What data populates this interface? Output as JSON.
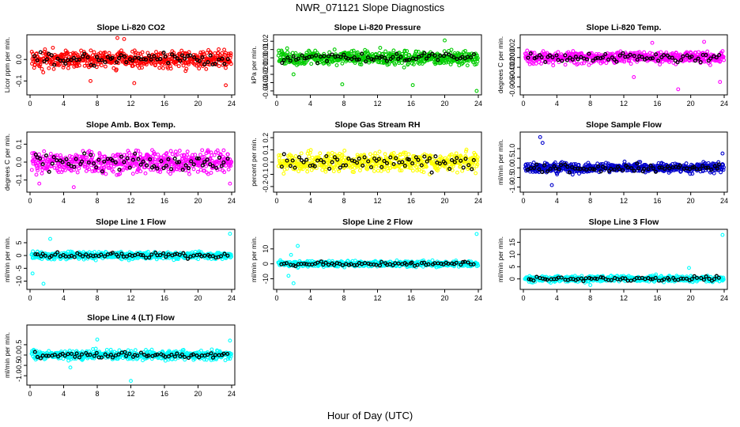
{
  "figure": {
    "title": "NWR_071121  Slope Diagnostics",
    "xlabel": "Hour of Day (UTC)"
  },
  "chart_data": [
    {
      "type": "scatter",
      "title": "Slope Li-820 CO2",
      "ylabel": "Licor ppm per min.",
      "xlim": [
        0,
        24
      ],
      "xticks": [
        "0",
        "4",
        "8",
        "12",
        "16",
        "20",
        "24"
      ],
      "ylim": [
        -0.15,
        0.1
      ],
      "yticks": [
        {
          "v": -0.1,
          "label": "-0.1"
        },
        {
          "v": 0,
          "label": "0.0"
        }
      ],
      "color": "#ff0000",
      "spread": 0.04,
      "outliers": [
        {
          "x": 10.4,
          "y": 0.11
        },
        {
          "x": 11.2,
          "y": 0.095
        },
        {
          "x": 12.4,
          "y": -0.11
        },
        {
          "x": 7.2,
          "y": -0.1
        },
        {
          "x": 23.3,
          "y": -0.12
        }
      ]
    },
    {
      "type": "scatter",
      "title": "Slope Li-820 Pressure",
      "ylabel": "kPa per min.",
      "xlim": [
        0,
        24
      ],
      "xticks": [
        "0",
        "4",
        "8",
        "12",
        "16",
        "20",
        "24"
      ],
      "ylim": [
        -0.041,
        0.024
      ],
      "yticks": [
        {
          "v": -0.04,
          "label": "-0.04"
        },
        {
          "v": -0.03,
          "label": "-0.03"
        },
        {
          "v": -0.02,
          "label": "-0.02"
        },
        {
          "v": -0.01,
          "label": "-0.01"
        },
        {
          "v": 0,
          "label": "0.00"
        },
        {
          "v": 0.01,
          "label": "0.01"
        },
        {
          "v": 0.02,
          "label": "0.02"
        }
      ],
      "color": "#00cc00",
      "spread": 0.008,
      "outliers": [
        {
          "x": 7.8,
          "y": -0.032
        },
        {
          "x": 16.2,
          "y": -0.033
        },
        {
          "x": 23.8,
          "y": -0.04
        },
        {
          "x": 20.0,
          "y": 0.021
        },
        {
          "x": 2.0,
          "y": -0.02
        }
      ]
    },
    {
      "type": "scatter",
      "title": "Slope Li-820 Temp.",
      "ylabel": "degrees C per min.",
      "xlim": [
        0,
        24
      ],
      "xticks": [
        "0",
        "4",
        "8",
        "12",
        "16",
        "20",
        "24"
      ],
      "ylim": [
        -0.007,
        0.004
      ],
      "yticks": [
        {
          "v": -0.006,
          "label": "-0.006"
        },
        {
          "v": -0.004,
          "label": "-0.004"
        },
        {
          "v": -0.002,
          "label": "-0.002"
        },
        {
          "v": 0,
          "label": "0.000"
        },
        {
          "v": 0.002,
          "label": "0.002"
        }
      ],
      "color": "#ff00ff",
      "spread": 0.0012,
      "outliers": [
        {
          "x": 15.4,
          "y": 0.003
        },
        {
          "x": 18.5,
          "y": -0.0065
        },
        {
          "x": 21.6,
          "y": 0.0032
        },
        {
          "x": 23.5,
          "y": -0.005
        },
        {
          "x": 13.2,
          "y": -0.004
        }
      ]
    },
    {
      "type": "scatter",
      "title": "Slope Amb. Box Temp.",
      "ylabel": "degrees C per min.",
      "xlim": [
        0,
        24
      ],
      "xticks": [
        "0",
        "4",
        "8",
        "12",
        "16",
        "20",
        "24"
      ],
      "ylim": [
        -0.15,
        0.15
      ],
      "yticks": [
        {
          "v": -0.1,
          "label": "-0.1"
        },
        {
          "v": 0,
          "label": "0.0"
        },
        {
          "v": 0.1,
          "label": "0.1"
        }
      ],
      "color": "#ff00ff",
      "spread": 0.06,
      "outliers": [
        {
          "x": 5.2,
          "y": -0.14
        },
        {
          "x": 1.1,
          "y": -0.12
        },
        {
          "x": 23.8,
          "y": -0.12
        }
      ]
    },
    {
      "type": "scatter",
      "title": "Slope Gas Stream RH",
      "ylabel": "percent per min.",
      "xlim": [
        0,
        24
      ],
      "xticks": [
        "0",
        "4",
        "8",
        "12",
        "16",
        "20",
        "24"
      ],
      "ylim": [
        -0.22,
        0.22
      ],
      "yticks": [
        {
          "v": -0.2,
          "label": "-0.2"
        },
        {
          "v": -0.1,
          "label": "-0.1"
        },
        {
          "v": 0,
          "label": "0.0"
        },
        {
          "v": 0.1,
          "label": "0.1"
        },
        {
          "v": 0.2,
          "label": "0.2"
        }
      ],
      "color": "#ffff00",
      "spread": 0.08,
      "outliers": []
    },
    {
      "type": "scatter",
      "title": "Slope Sample Flow",
      "ylabel": "ml/min per min.",
      "xlim": [
        0,
        24
      ],
      "xticks": [
        "0",
        "4",
        "8",
        "12",
        "16",
        "20",
        "24"
      ],
      "ylim": [
        -1.1,
        1.7
      ],
      "yticks": [
        {
          "v": -1.0,
          "label": "-1.0"
        },
        {
          "v": -0.5,
          "label": "-0.5"
        },
        {
          "v": 0,
          "label": "0.0"
        },
        {
          "v": 0.5,
          "label": "0.5"
        },
        {
          "v": 1.0,
          "label": "1.0"
        }
      ],
      "color": "#0000cc",
      "spread": 0.25,
      "outliers": [
        {
          "x": 2.0,
          "y": 1.6
        },
        {
          "x": 2.3,
          "y": 1.3
        },
        {
          "x": 3.4,
          "y": -0.9
        },
        {
          "x": 23.8,
          "y": 0.75
        }
      ]
    },
    {
      "type": "scatter",
      "title": "Slope Line 1 Flow",
      "ylabel": "ml/min per min.",
      "xlim": [
        0,
        24
      ],
      "xticks": [
        "0",
        "4",
        "8",
        "12",
        "16",
        "20",
        "24"
      ],
      "ylim": [
        -12,
        9
      ],
      "yticks": [
        {
          "v": -10,
          "label": "-10"
        },
        {
          "v": -5,
          "label": "-5"
        },
        {
          "v": 0,
          "label": "0"
        },
        {
          "v": 5,
          "label": "5"
        }
      ],
      "color": "#00ffff",
      "spread": 1.4,
      "outliers": [
        {
          "x": 1.6,
          "y": -11
        },
        {
          "x": 2.4,
          "y": 6.5
        },
        {
          "x": 23.8,
          "y": 8.5
        },
        {
          "x": 0.3,
          "y": -7
        }
      ]
    },
    {
      "type": "scatter",
      "title": "Slope Line 2 Flow",
      "ylabel": "ml/min per min.",
      "xlim": [
        0,
        24
      ],
      "xticks": [
        "0",
        "4",
        "8",
        "12",
        "16",
        "20",
        "24"
      ],
      "ylim": [
        -15,
        21
      ],
      "yticks": [
        {
          "v": -10,
          "label": "-10"
        },
        {
          "v": 0,
          "label": "0"
        },
        {
          "v": 10,
          "label": "10"
        }
      ],
      "color": "#00ffff",
      "spread": 1.8,
      "outliers": [
        {
          "x": 2.0,
          "y": -13
        },
        {
          "x": 2.5,
          "y": 12
        },
        {
          "x": 23.8,
          "y": 20
        },
        {
          "x": 1.4,
          "y": -8
        },
        {
          "x": 1.7,
          "y": 6
        }
      ]
    },
    {
      "type": "scatter",
      "title": "Slope Line 3 Flow",
      "ylabel": "ml/min per min.",
      "xlim": [
        0,
        24
      ],
      "xticks": [
        "0",
        "4",
        "8",
        "12",
        "16",
        "20",
        "24"
      ],
      "ylim": [
        -3,
        19
      ],
      "yticks": [
        {
          "v": 0,
          "label": "0"
        },
        {
          "v": 5,
          "label": "5"
        },
        {
          "v": 10,
          "label": "10"
        },
        {
          "v": 15,
          "label": "15"
        }
      ],
      "color": "#00ffff",
      "spread": 1.2,
      "outliers": [
        {
          "x": 23.8,
          "y": 18
        },
        {
          "x": 19.8,
          "y": 4.5
        },
        {
          "x": 8.0,
          "y": -2.5
        }
      ]
    },
    {
      "type": "scatter",
      "title": "Slope Line 4 (LT) Flow",
      "ylabel": "ml/min per min.",
      "xlim": [
        0,
        24
      ],
      "xticks": [
        "0",
        "4",
        "8",
        "12",
        "16",
        "20",
        "24"
      ],
      "ylim": [
        -1.3,
        1.3
      ],
      "yticks": [
        {
          "v": -1.0,
          "label": "-1.0"
        },
        {
          "v": -0.5,
          "label": "-0.5"
        },
        {
          "v": 0,
          "label": "0.0"
        },
        {
          "v": 0.5,
          "label": "0.5"
        }
      ],
      "color": "#00ffff",
      "spread": 0.22,
      "outliers": [
        {
          "x": 12.0,
          "y": -1.25
        },
        {
          "x": 8.0,
          "y": 0.75
        },
        {
          "x": 4.8,
          "y": -0.6
        },
        {
          "x": 23.8,
          "y": 0.7
        }
      ]
    }
  ]
}
